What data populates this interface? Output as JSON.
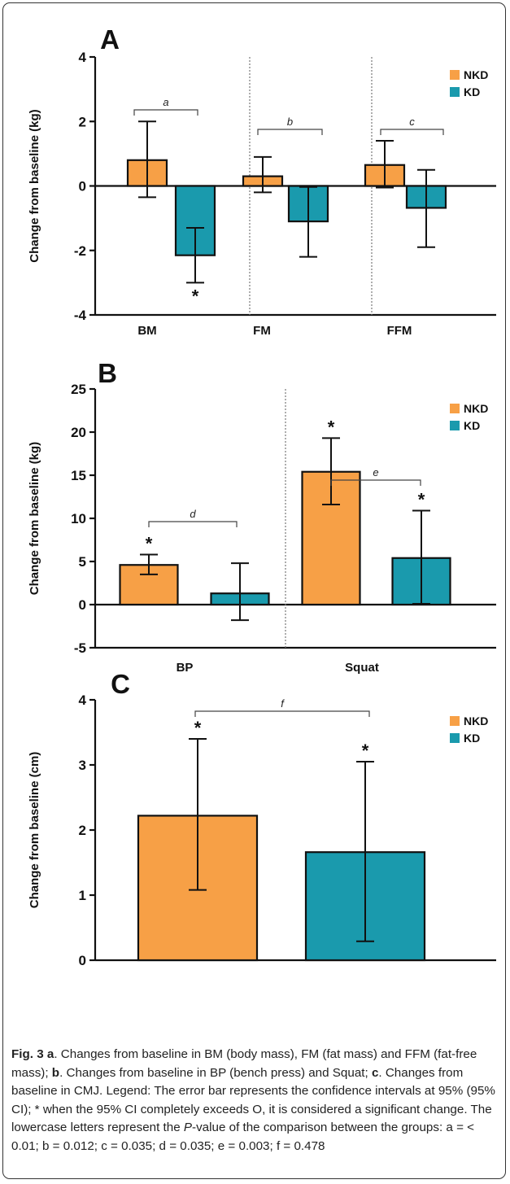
{
  "colors": {
    "NKD": "#f7a046",
    "KD": "#1a9aad",
    "stroke": "#111111"
  },
  "chart_data": [
    {
      "type": "bar",
      "panel_label": "A",
      "ylabel": "Change from baseline (kg)",
      "ylim": [
        -4,
        4
      ],
      "yticks": [
        -4,
        -2,
        0,
        2,
        4
      ],
      "categories": [
        "BM",
        "FM",
        "FFM"
      ],
      "series": [
        {
          "name": "NKD",
          "values": [
            0.8,
            0.3,
            0.65
          ],
          "ci_low": [
            -0.35,
            -0.2,
            -0.05
          ],
          "ci_high": [
            2.0,
            0.9,
            1.4
          ]
        },
        {
          "name": "KD",
          "values": [
            -2.15,
            -1.1,
            -0.68
          ],
          "ci_low": [
            -3.0,
            -2.2,
            -1.9
          ],
          "ci_high": [
            -1.3,
            -0.03,
            0.5
          ]
        }
      ],
      "significance_stars": [
        {
          "category": "BM",
          "series": "KD",
          "position": "below",
          "label": "*"
        }
      ],
      "comparison_labels": [
        "a",
        "b",
        "c"
      ],
      "separators": true,
      "legend": {
        "position": "top-right",
        "entries": [
          "NKD",
          "KD"
        ]
      }
    },
    {
      "type": "bar",
      "panel_label": "B",
      "ylabel": "Change from baseline (kg)",
      "ylim": [
        -5,
        25
      ],
      "yticks": [
        -5,
        0,
        5,
        10,
        15,
        20,
        25
      ],
      "categories": [
        "BP",
        "Squat"
      ],
      "series": [
        {
          "name": "NKD",
          "values": [
            4.6,
            15.4
          ],
          "ci_low": [
            3.5,
            11.6
          ],
          "ci_high": [
            5.8,
            19.3
          ]
        },
        {
          "name": "KD",
          "values": [
            1.3,
            5.4
          ],
          "ci_low": [
            -1.8,
            0.1
          ],
          "ci_high": [
            4.8,
            10.9
          ]
        }
      ],
      "significance_stars": [
        {
          "category": "BP",
          "series": "NKD",
          "position": "above",
          "label": "*"
        },
        {
          "category": "Squat",
          "series": "NKD",
          "position": "above",
          "label": "*"
        },
        {
          "category": "Squat",
          "series": "KD",
          "position": "above",
          "label": "*"
        }
      ],
      "comparison_labels": [
        "d",
        "e"
      ],
      "separators": true,
      "legend": {
        "position": "top-right",
        "entries": [
          "NKD",
          "KD"
        ]
      }
    },
    {
      "type": "bar",
      "panel_label": "C",
      "ylabel": "Change from baseline (cm)",
      "ylim": [
        0,
        4
      ],
      "yticks": [
        0,
        1,
        2,
        3,
        4
      ],
      "categories": [
        ""
      ],
      "series": [
        {
          "name": "NKD",
          "values": [
            2.22
          ],
          "ci_low": [
            1.08
          ],
          "ci_high": [
            3.4
          ]
        },
        {
          "name": "KD",
          "values": [
            1.66
          ],
          "ci_low": [
            0.29
          ],
          "ci_high": [
            3.05
          ]
        }
      ],
      "significance_stars": [
        {
          "category": "",
          "series": "NKD",
          "position": "above",
          "label": "*"
        },
        {
          "category": "",
          "series": "KD",
          "position": "above",
          "label": "*"
        }
      ],
      "comparison_labels": [
        "f"
      ],
      "separators": false,
      "legend": {
        "position": "top-right",
        "entries": [
          "NKD",
          "KD"
        ]
      }
    }
  ],
  "caption": {
    "fig_label": "Fig. 3",
    "text_1": " ",
    "a_label": "a",
    "text_a": ". Changes from baseline in BM (body mass), FM (fat mass) and FFM (fat-free mass); ",
    "b_label": "b",
    "text_b": ". Changes from baseline in BP (bench press) and Squat; ",
    "c_label": "c",
    "text_c": ". Changes from baseline in CMJ. Legend: The error bar represents the confidence intervals at 95% (95% CI); * when the 95% CI completely exceeds O, it is considered a significant change. The lowercase letters represent the ",
    "p_label": "P",
    "text_p": "-value of the comparison between the groups: a = < 0.01; b = 0.012; c = 0.035; d = 0.035; e = 0.003; f = 0.478"
  }
}
